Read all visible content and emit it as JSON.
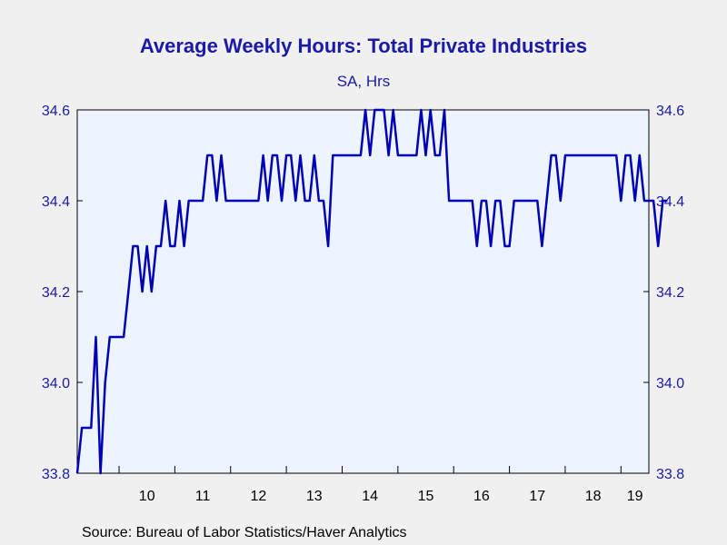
{
  "chart_data": {
    "type": "line",
    "title": "Average Weekly Hours: Total Private Industries",
    "subtitle": "SA, Hrs",
    "source": "Source:  Bureau of Labor Statistics/Haver Analytics",
    "x_tick_labels": [
      "10",
      "11",
      "12",
      "13",
      "14",
      "15",
      "16",
      "17",
      "18",
      "19"
    ],
    "y_tick_labels": [
      "33.8",
      "34.0",
      "34.2",
      "34.4",
      "34.6"
    ],
    "y_ticks": [
      33.8,
      34.0,
      34.2,
      34.4,
      34.6
    ],
    "ylim": [
      33.8,
      34.6
    ],
    "x_range": [
      2009.25,
      2019.5
    ],
    "line_color": "#0000b4",
    "grid": false,
    "series": [
      {
        "x_start": 2009.25,
        "frequency": "monthly",
        "values": [
          33.8,
          33.9,
          33.9,
          33.9,
          34.1,
          33.8,
          34.0,
          34.1,
          34.1,
          34.1,
          34.1,
          34.2,
          34.3,
          34.3,
          34.2,
          34.3,
          34.2,
          34.3,
          34.3,
          34.4,
          34.3,
          34.3,
          34.4,
          34.3,
          34.4,
          34.4,
          34.4,
          34.4,
          34.5,
          34.5,
          34.4,
          34.5,
          34.4,
          34.4,
          34.4,
          34.4,
          34.4,
          34.4,
          34.4,
          34.4,
          34.5,
          34.4,
          34.5,
          34.5,
          34.4,
          34.5,
          34.5,
          34.4,
          34.5,
          34.4,
          34.4,
          34.5,
          34.4,
          34.4,
          34.3,
          34.5,
          34.5,
          34.5,
          34.5,
          34.5,
          34.5,
          34.5,
          34.6,
          34.5,
          34.6,
          34.6,
          34.6,
          34.5,
          34.6,
          34.5,
          34.5,
          34.5,
          34.5,
          34.5,
          34.6,
          34.5,
          34.6,
          34.5,
          34.5,
          34.6,
          34.4,
          34.4,
          34.4,
          34.4,
          34.4,
          34.4,
          34.3,
          34.4,
          34.4,
          34.3,
          34.4,
          34.4,
          34.3,
          34.3,
          34.4,
          34.4,
          34.4,
          34.4,
          34.4,
          34.4,
          34.3,
          34.4,
          34.5,
          34.5,
          34.4,
          34.5,
          34.5,
          34.5,
          34.5,
          34.5,
          34.5,
          34.5,
          34.5,
          34.5,
          34.5,
          34.5,
          34.5,
          34.4,
          34.5,
          34.5,
          34.4,
          34.5,
          34.4,
          34.4,
          34.4,
          34.3,
          34.4,
          34.4
        ]
      }
    ]
  }
}
